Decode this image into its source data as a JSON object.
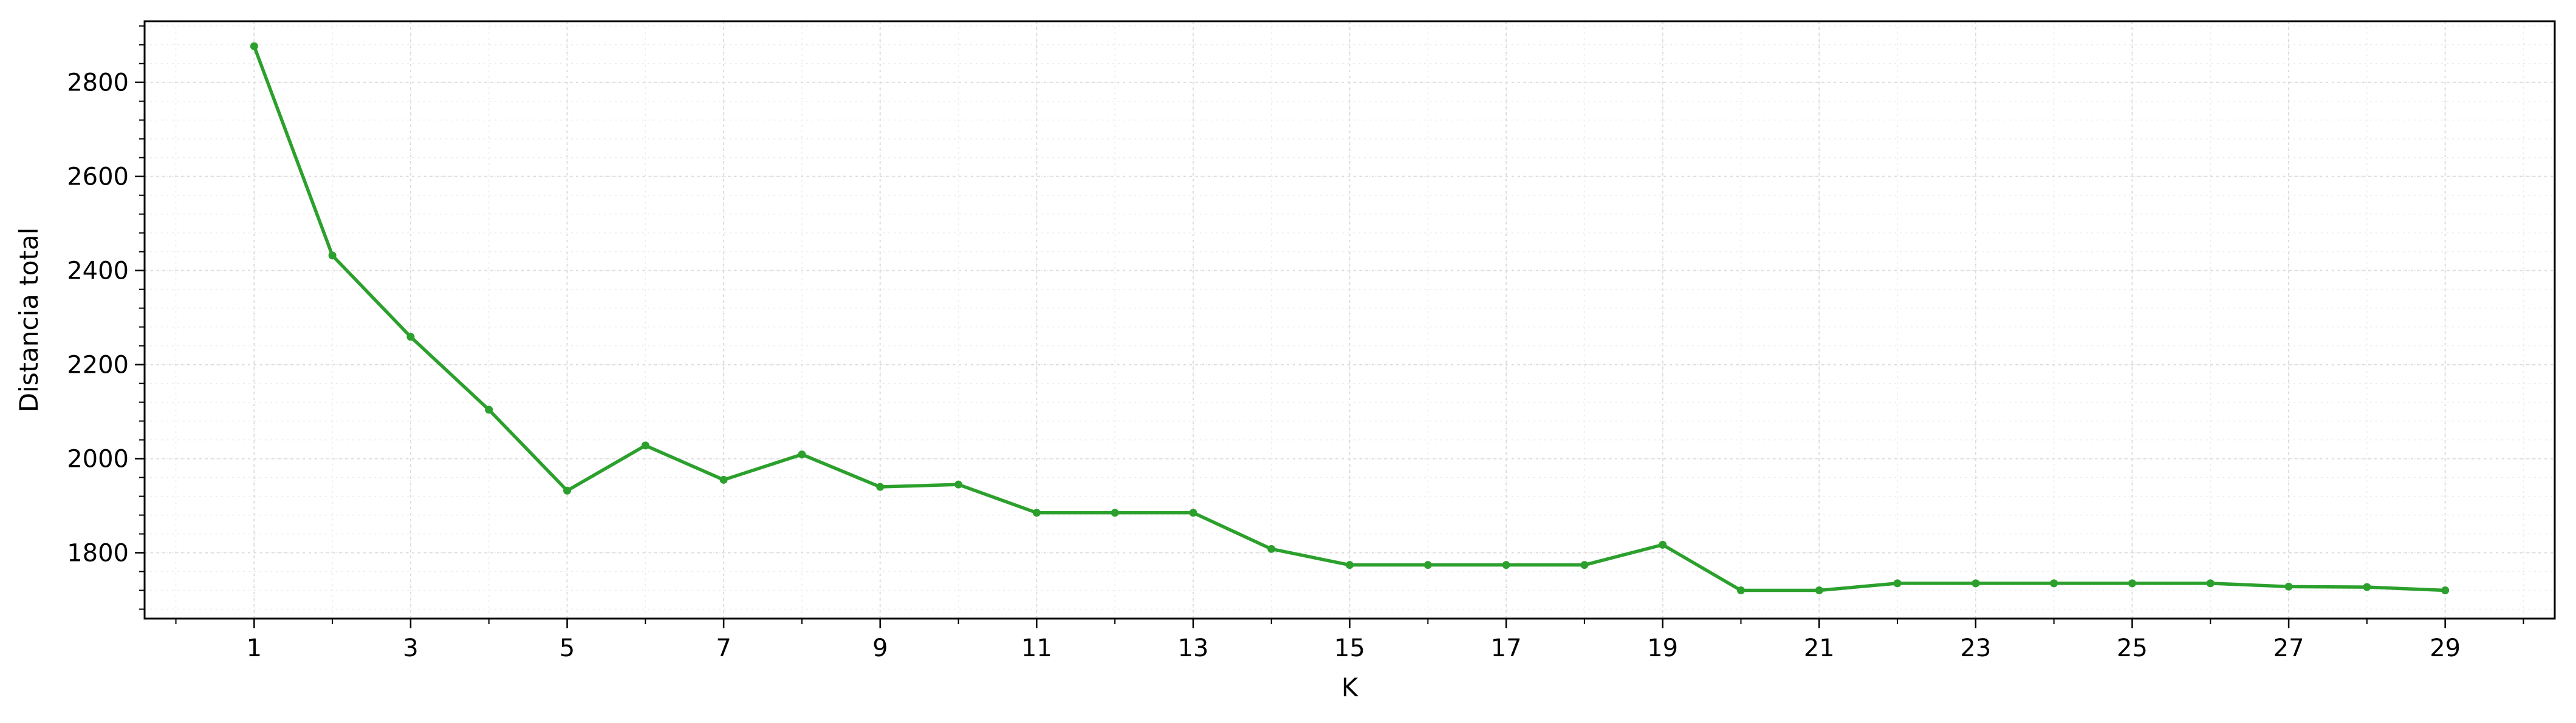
{
  "chart_data": {
    "type": "line",
    "title": "",
    "xlabel": "K",
    "ylabel": "Distancia total",
    "x": [
      1,
      2,
      3,
      4,
      5,
      6,
      7,
      8,
      9,
      10,
      11,
      12,
      13,
      14,
      15,
      16,
      17,
      18,
      19,
      20,
      21,
      22,
      23,
      24,
      25,
      26,
      27,
      28,
      29
    ],
    "series": [
      {
        "values": [
          2877,
          2432,
          2259,
          2104,
          1932,
          2028,
          1955,
          2009,
          1940,
          1945,
          1885,
          1885,
          1885,
          1808,
          1774,
          1774,
          1774,
          1774,
          1817,
          1720,
          1720,
          1735,
          1735,
          1735,
          1735,
          1735,
          1728,
          1727,
          1720
        ],
        "color": "#2ca02c"
      }
    ],
    "xlim": [
      -0.4,
      30.4
    ],
    "ylim": [
      1660,
      2930
    ],
    "x_ticks": [
      1,
      3,
      5,
      7,
      9,
      11,
      13,
      15,
      17,
      19,
      21,
      23,
      25,
      27,
      29
    ],
    "y_ticks": [
      1800,
      2000,
      2200,
      2400,
      2600,
      2800
    ],
    "x_tick_labels": [
      "1",
      "3",
      "5",
      "7",
      "9",
      "11",
      "13",
      "15",
      "17",
      "19",
      "21",
      "23",
      "25",
      "27",
      "29"
    ],
    "y_tick_labels": [
      "1800",
      "2000",
      "2200",
      "2400",
      "2600",
      "2800"
    ],
    "grid": true,
    "minor_grid": true,
    "legend": "none"
  }
}
